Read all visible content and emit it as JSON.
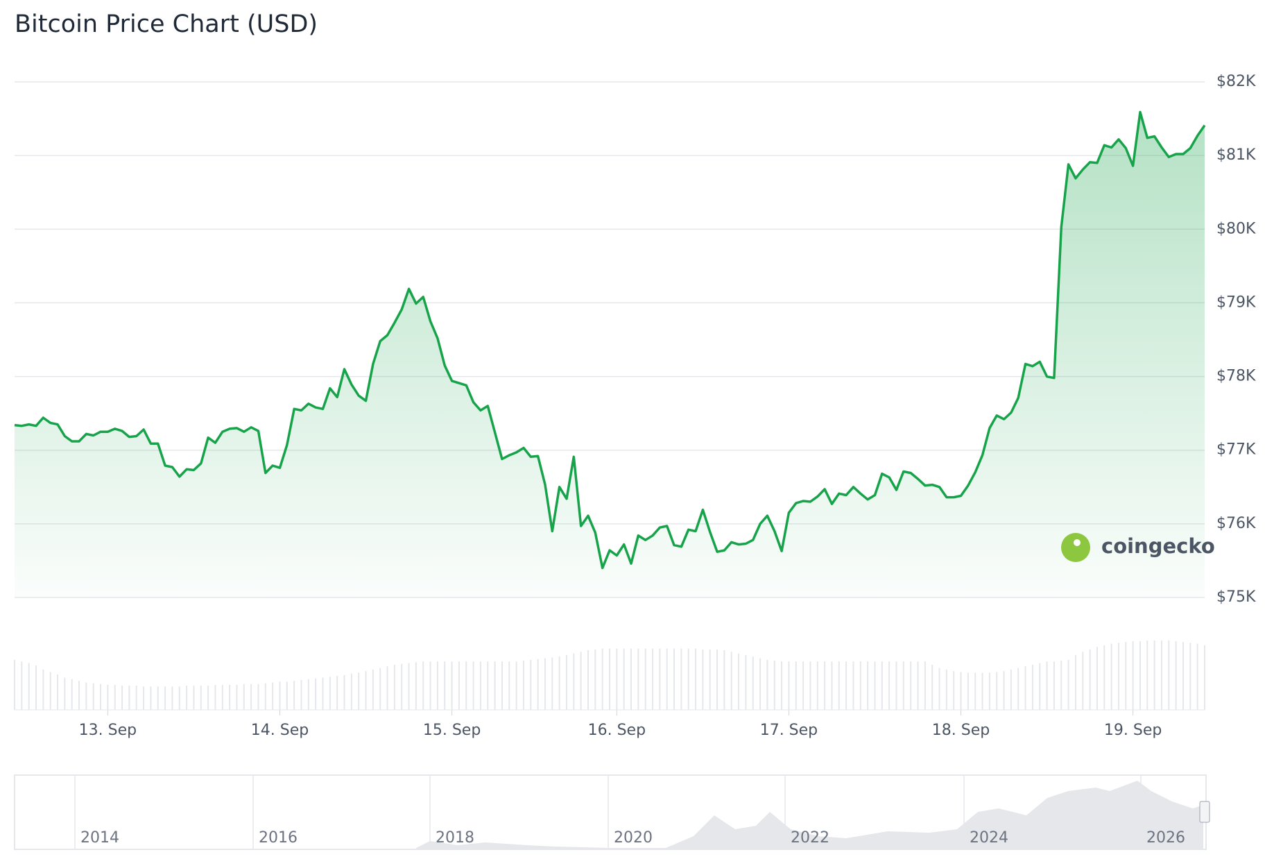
{
  "chart_data": {
    "type": "line",
    "title": "Bitcoin Price Chart (USD)",
    "color": "#16a34a",
    "grid": true,
    "values": [
      77340,
      77330,
      77350,
      77330,
      77440,
      77370,
      77350,
      77190,
      77120,
      77120,
      77220,
      77200,
      77250,
      77250,
      77290,
      77260,
      77180,
      77190,
      77280,
      77090,
      77090,
      76790,
      76770,
      76640,
      76740,
      76730,
      76820,
      77170,
      77100,
      77250,
      77290,
      77300,
      77250,
      77310,
      77260,
      76690,
      76790,
      76760,
      77070,
      77560,
      77540,
      77630,
      77580,
      77560,
      77840,
      77720,
      78100,
      77890,
      77740,
      77670,
      78170,
      78480,
      78560,
      78730,
      78910,
      79190,
      78990,
      79080,
      78750,
      78520,
      78150,
      77940,
      77910,
      77880,
      77650,
      77540,
      77600,
      77240,
      76880,
      76930,
      76970,
      77030,
      76910,
      76920,
      76530,
      75900,
      76500,
      76340,
      76910,
      75970,
      76110,
      75880,
      75400,
      75640,
      75570,
      75720,
      75460,
      75840,
      75780,
      75840,
      75950,
      75970,
      75710,
      75690,
      75920,
      75900,
      76190,
      75890,
      75620,
      75640,
      75750,
      75720,
      75730,
      75780,
      76000,
      76110,
      75900,
      75630,
      76150,
      76280,
      76310,
      76300,
      76370,
      76470,
      76270,
      76410,
      76390,
      76500,
      76410,
      76330,
      76390,
      76680,
      76630,
      76460,
      76710,
      76690,
      76610,
      76520,
      76530,
      76500,
      76360,
      76360,
      76380,
      76520,
      76700,
      76930,
      77300,
      77470,
      77420,
      77510,
      77710,
      78170,
      78140,
      78200,
      78000,
      77980,
      80030,
      80880,
      80690,
      80810,
      80910,
      80900,
      81140,
      81110,
      81220,
      81100,
      80860,
      81590,
      81240,
      81260,
      81110,
      80980,
      81020,
      81020,
      81100,
      81270,
      81410
    ],
    "volume": [
      62,
      60,
      58,
      55,
      50,
      47,
      44,
      40,
      38,
      36,
      34,
      33,
      32,
      31,
      31,
      30,
      30,
      30,
      29,
      29,
      29,
      29,
      29,
      29,
      30,
      30,
      30,
      30,
      31,
      31,
      31,
      31,
      32,
      32,
      32,
      33,
      34,
      35,
      35,
      36,
      37,
      38,
      39,
      40,
      41,
      42,
      43,
      45,
      46,
      48,
      50,
      52,
      54,
      56,
      57,
      58,
      59,
      60,
      60,
      60,
      60,
      60,
      60,
      60,
      60,
      60,
      60,
      60,
      60,
      60,
      60,
      61,
      62,
      63,
      64,
      65,
      66,
      68,
      70,
      72,
      74,
      75,
      76,
      76,
      76,
      76,
      76,
      76,
      76,
      76,
      76,
      76,
      76,
      76,
      76,
      76,
      75,
      75,
      75,
      74,
      72,
      70,
      68,
      66,
      64,
      62,
      61,
      60,
      60,
      60,
      60,
      60,
      60,
      60,
      60,
      60,
      60,
      60,
      60,
      60,
      60,
      60,
      60,
      60,
      60,
      60,
      60,
      60,
      56,
      52,
      50,
      48,
      47,
      46,
      46,
      46,
      46,
      47,
      48,
      50,
      52,
      54,
      56,
      58,
      60,
      60,
      61,
      62,
      68,
      72,
      75,
      78,
      80,
      82,
      83,
      84,
      85,
      85,
      86,
      86,
      86,
      86,
      85,
      84,
      83,
      82,
      80
    ],
    "volume_color": "#e5e7eb",
    "xlim": [
      0,
      166
    ],
    "xticks": [
      {
        "value": 13,
        "label": "13. Sep"
      },
      {
        "value": 37,
        "label": "14. Sep"
      },
      {
        "value": 61,
        "label": "15. Sep"
      },
      {
        "value": 84,
        "label": "16. Sep"
      },
      {
        "value": 108,
        "label": "17. Sep"
      },
      {
        "value": 132,
        "label": "18. Sep"
      },
      {
        "value": 156,
        "label": "19. Sep"
      }
    ],
    "ylim": [
      75000,
      82000
    ],
    "yticks": [
      {
        "value": 75000,
        "label": "$75K"
      },
      {
        "value": 76000,
        "label": "$76K"
      },
      {
        "value": 77000,
        "label": "$77K"
      },
      {
        "value": 78000,
        "label": "$78K"
      },
      {
        "value": 79000,
        "label": "$79K"
      },
      {
        "value": 80000,
        "label": "$80K"
      },
      {
        "value": 81000,
        "label": "$81K"
      },
      {
        "value": 82000,
        "label": "$82K"
      }
    ],
    "watermark": "coingecko",
    "navigator": {
      "labels": [
        "2014",
        "2016",
        "2018",
        "2020",
        "2022",
        "2024",
        "2026"
      ]
    }
  }
}
